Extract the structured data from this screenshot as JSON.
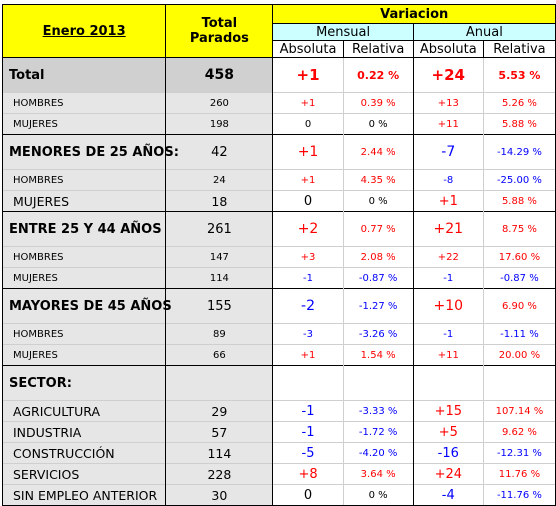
{
  "header": {
    "period": "Enero 2013",
    "total_parados_line1": "Total",
    "total_parados_line2": "Parados",
    "variacion": "Variacion",
    "mensual": "Mensual",
    "anual": "Anual",
    "absoluta": "Absoluta",
    "relativa": "Relativa"
  },
  "rows": [
    {
      "type": "total",
      "label": "Total",
      "value": "458",
      "m_abs": "+1",
      "m_abs_color": "red",
      "m_rel": "0.22 %",
      "m_rel_color": "red",
      "a_abs": "+24",
      "a_abs_color": "red",
      "a_rel": "5.53 %",
      "a_rel_color": "red"
    },
    {
      "type": "sub",
      "label": "HOMBRES",
      "value": "260",
      "m_abs": "+1",
      "m_abs_color": "red",
      "m_rel": "0.39 %",
      "m_rel_color": "red",
      "a_abs": "+13",
      "a_abs_color": "red",
      "a_rel": "5.26 %",
      "a_rel_color": "red"
    },
    {
      "type": "sub",
      "label": "MUJERES",
      "value": "198",
      "m_abs": "0",
      "m_abs_color": "black",
      "m_rel": "0 %",
      "m_rel_color": "black",
      "a_abs": "+11",
      "a_abs_color": "red",
      "a_rel": "5.88 %",
      "a_rel_color": "red"
    },
    {
      "type": "section",
      "label": "MENORES DE 25 AÑOS:",
      "value": "42",
      "m_abs": "+1",
      "m_abs_color": "red",
      "m_rel": "2.44 %",
      "m_rel_color": "red",
      "a_abs": "-7",
      "a_abs_color": "blue",
      "a_rel": "-14.29 %",
      "a_rel_color": "blue"
    },
    {
      "type": "sub",
      "label": "HOMBRES",
      "value": "24",
      "m_abs": "+1",
      "m_abs_color": "red",
      "m_rel": "4.35 %",
      "m_rel_color": "red",
      "a_abs": "-8",
      "a_abs_color": "blue",
      "a_rel": "-25.00 %",
      "a_rel_color": "blue"
    },
    {
      "type": "sub",
      "label": "MUJERES",
      "value": "18",
      "m_abs": "0",
      "m_abs_color": "black",
      "m_rel": "0 %",
      "m_rel_color": "black",
      "a_abs": "+1",
      "a_abs_color": "red",
      "a_rel": "5.88 %",
      "a_rel_color": "red",
      "big": true
    },
    {
      "type": "section",
      "label": "ENTRE 25 Y 44 AÑOS",
      "value": "261",
      "m_abs": "+2",
      "m_abs_color": "red",
      "m_rel": "0.77 %",
      "m_rel_color": "red",
      "a_abs": "+21",
      "a_abs_color": "red",
      "a_rel": "8.75 %",
      "a_rel_color": "red"
    },
    {
      "type": "sub",
      "label": "HOMBRES",
      "value": "147",
      "m_abs": "+3",
      "m_abs_color": "red",
      "m_rel": "2.08 %",
      "m_rel_color": "red",
      "a_abs": "+22",
      "a_abs_color": "red",
      "a_rel": "17.60 %",
      "a_rel_color": "red"
    },
    {
      "type": "sub",
      "label": "MUJERES",
      "value": "114",
      "m_abs": "-1",
      "m_abs_color": "blue",
      "m_rel": "-0.87 %",
      "m_rel_color": "blue",
      "a_abs": "-1",
      "a_abs_color": "blue",
      "a_rel": "-0.87 %",
      "a_rel_color": "blue"
    },
    {
      "type": "section",
      "label": "MAYORES DE 45 AÑOS",
      "value": "155",
      "m_abs": "-2",
      "m_abs_color": "blue",
      "m_rel": "-1.27 %",
      "m_rel_color": "blue",
      "a_abs": "+10",
      "a_abs_color": "red",
      "a_rel": "6.90 %",
      "a_rel_color": "red"
    },
    {
      "type": "sub",
      "label": "HOMBRES",
      "value": "89",
      "m_abs": "-3",
      "m_abs_color": "blue",
      "m_rel": "-3.26 %",
      "m_rel_color": "blue",
      "a_abs": "-1",
      "a_abs_color": "blue",
      "a_rel": "-1.11 %",
      "a_rel_color": "blue"
    },
    {
      "type": "sub",
      "label": "MUJERES",
      "value": "66",
      "m_abs": "+1",
      "m_abs_color": "red",
      "m_rel": "1.54 %",
      "m_rel_color": "red",
      "a_abs": "+11",
      "a_abs_color": "red",
      "a_rel": "20.00 %",
      "a_rel_color": "red"
    },
    {
      "type": "section",
      "label": "SECTOR:",
      "value": "",
      "m_abs": "",
      "m_abs_color": "black",
      "m_rel": "",
      "m_rel_color": "black",
      "a_abs": "",
      "a_abs_color": "black",
      "a_rel": "",
      "a_rel_color": "black"
    },
    {
      "type": "sub",
      "label": "AGRICULTURA",
      "value": "29",
      "m_abs": "-1",
      "m_abs_color": "blue",
      "m_rel": "-3.33 %",
      "m_rel_color": "blue",
      "a_abs": "+15",
      "a_abs_color": "red",
      "a_rel": "107.14 %",
      "a_rel_color": "red",
      "big": true
    },
    {
      "type": "sub",
      "label": "INDUSTRIA",
      "value": "57",
      "m_abs": "-1",
      "m_abs_color": "blue",
      "m_rel": "-1.72 %",
      "m_rel_color": "blue",
      "a_abs": "+5",
      "a_abs_color": "red",
      "a_rel": "9.62 %",
      "a_rel_color": "red",
      "big": true
    },
    {
      "type": "sub",
      "label": "CONSTRUCCIÓN",
      "value": "114",
      "m_abs": "-5",
      "m_abs_color": "blue",
      "m_rel": "-4.20 %",
      "m_rel_color": "blue",
      "a_abs": "-16",
      "a_abs_color": "blue",
      "a_rel": "-12.31 %",
      "a_rel_color": "blue",
      "big": true
    },
    {
      "type": "sub",
      "label": "SERVICIOS",
      "value": "228",
      "m_abs": "+8",
      "m_abs_color": "red",
      "m_rel": "3.64 %",
      "m_rel_color": "red",
      "a_abs": "+24",
      "a_abs_color": "red",
      "a_rel": "11.76 %",
      "a_rel_color": "red",
      "big": true
    },
    {
      "type": "sub",
      "label": "SIN EMPLEO ANTERIOR",
      "value": "30",
      "m_abs": "0",
      "m_abs_color": "black",
      "m_rel": "0 %",
      "m_rel_color": "black",
      "a_abs": "-4",
      "a_abs_color": "blue",
      "a_rel": "-11.76 %",
      "a_rel_color": "blue",
      "big": true
    }
  ]
}
